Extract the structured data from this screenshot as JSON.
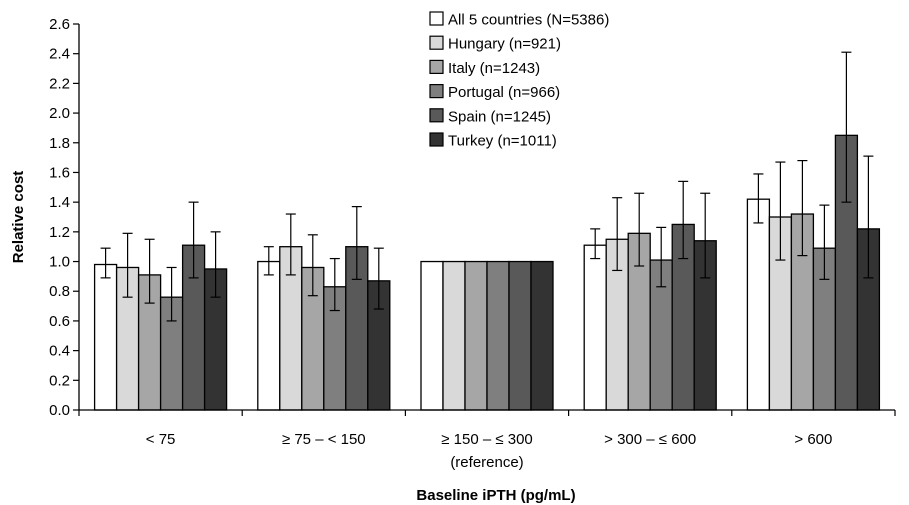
{
  "chart_data": {
    "type": "bar",
    "title": "",
    "xlabel": "Baseline iPTH (pg/mL)",
    "ylabel": "Relative cost",
    "ylim": [
      0,
      2.6
    ],
    "yticks": [
      "0.0",
      "0.2",
      "0.4",
      "0.6",
      "0.8",
      "1.0",
      "1.2",
      "1.4",
      "1.6",
      "1.8",
      "2.0",
      "2.2",
      "2.4",
      "2.6"
    ],
    "grid": false,
    "legend_position": "top-right",
    "categories": [
      {
        "line1": "< 75",
        "line2": ""
      },
      {
        "line1": "≥ 75 – < 150",
        "line2": ""
      },
      {
        "line1": "≥ 150 – ≤ 300",
        "line2": "(reference)"
      },
      {
        "line1": "> 300 – ≤ 600",
        "line2": ""
      },
      {
        "line1": "> 600",
        "line2": ""
      }
    ],
    "series": [
      {
        "name": "All 5 countries (N=5386)",
        "color": "#ffffff",
        "values": [
          0.98,
          1.0,
          1.0,
          1.11,
          1.42
        ],
        "lower": [
          0.89,
          0.91,
          null,
          1.02,
          1.26
        ],
        "upper": [
          1.09,
          1.1,
          null,
          1.22,
          1.59
        ]
      },
      {
        "name": "Hungary (n=921)",
        "color": "#d9d9d9",
        "values": [
          0.96,
          1.1,
          1.0,
          1.15,
          1.3
        ],
        "lower": [
          0.76,
          0.91,
          null,
          0.94,
          1.01
        ],
        "upper": [
          1.19,
          1.32,
          null,
          1.43,
          1.67
        ]
      },
      {
        "name": "Italy (n=1243)",
        "color": "#a6a6a6",
        "values": [
          0.91,
          0.96,
          1.0,
          1.19,
          1.32
        ],
        "lower": [
          0.72,
          0.77,
          null,
          0.97,
          1.04
        ],
        "upper": [
          1.15,
          1.18,
          null,
          1.46,
          1.68
        ]
      },
      {
        "name": "Portugal (n=966)",
        "color": "#7f7f7f",
        "values": [
          0.76,
          0.83,
          1.0,
          1.01,
          1.09
        ],
        "lower": [
          0.6,
          0.67,
          null,
          0.83,
          0.88
        ],
        "upper": [
          0.96,
          1.02,
          null,
          1.23,
          1.38
        ]
      },
      {
        "name": "Spain (n=1245)",
        "color": "#595959",
        "values": [
          1.11,
          1.1,
          1.0,
          1.25,
          1.85
        ],
        "lower": [
          0.89,
          0.88,
          null,
          1.02,
          1.4
        ],
        "upper": [
          1.4,
          1.37,
          null,
          1.54,
          2.41
        ]
      },
      {
        "name": "Turkey (n=1011)",
        "color": "#333333",
        "values": [
          0.95,
          0.87,
          1.0,
          1.14,
          1.22
        ],
        "lower": [
          0.76,
          0.68,
          null,
          0.89,
          0.89
        ],
        "upper": [
          1.2,
          1.09,
          null,
          1.46,
          1.71
        ]
      }
    ]
  }
}
